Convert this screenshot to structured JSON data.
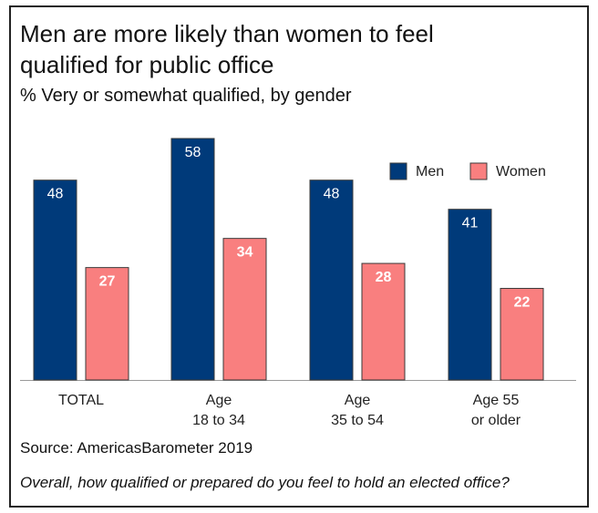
{
  "chart_data": {
    "type": "bar",
    "title": "Men are more likely than women to feel qualified for public office",
    "subtitle": "% Very or somewhat qualified, by gender",
    "categories": [
      [
        "TOTAL"
      ],
      [
        "Age",
        "18 to 34"
      ],
      [
        "Age",
        "35 to 54"
      ],
      [
        "Age 55",
        "or older"
      ]
    ],
    "series": [
      {
        "name": "Men",
        "color": "#003A7A",
        "values": [
          48,
          58,
          48,
          41
        ]
      },
      {
        "name": "Women",
        "color": "#F97F7F",
        "values": [
          27,
          34,
          28,
          22
        ]
      }
    ],
    "legend_position": "top-right",
    "grid": false,
    "ylim": [
      0,
      58
    ]
  },
  "source": "Source: AmericasBarometer 2019",
  "note": "Overall, how qualified or prepared do you feel to hold an elected office?"
}
